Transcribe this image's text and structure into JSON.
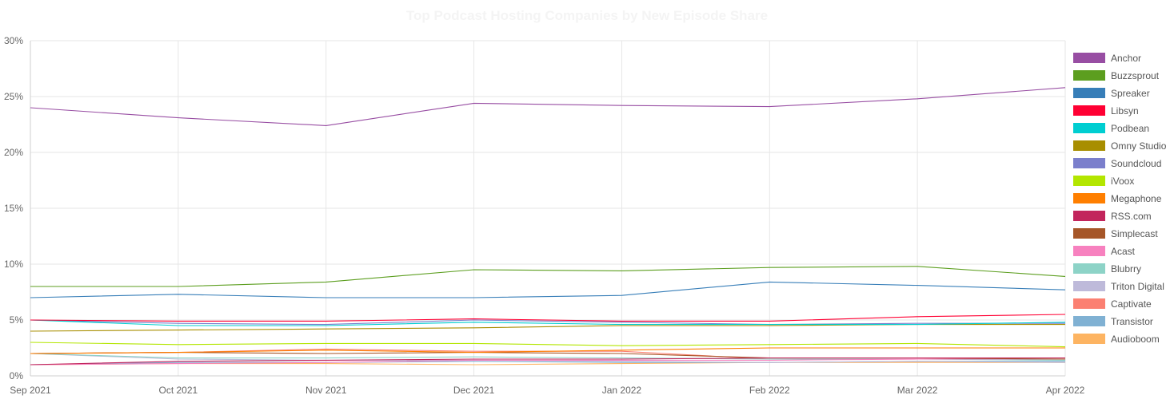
{
  "chart_data": {
    "type": "line",
    "title": "Top Podcast Hosting Companies by New Episode Share",
    "xlabel": "",
    "ylabel": "",
    "x": [
      "Sep 2021",
      "Oct 2021",
      "Nov 2021",
      "Dec 2021",
      "Jan 2022",
      "Feb 2022",
      "Mar 2022",
      "Apr 2022"
    ],
    "ylim": [
      0,
      30
    ],
    "y_ticks": [
      0,
      5,
      10,
      15,
      20,
      25,
      30
    ],
    "y_tick_labels": [
      "0%",
      "5%",
      "10%",
      "15%",
      "20%",
      "25%",
      "30%"
    ],
    "grid": true,
    "legend_position": "right",
    "series": [
      {
        "name": "Anchor",
        "color": "#984EA3",
        "values": [
          24.0,
          23.1,
          22.4,
          24.4,
          24.2,
          24.1,
          24.8,
          25.8
        ]
      },
      {
        "name": "Buzzsprout",
        "color": "#5C9E1F",
        "values": [
          8.0,
          8.0,
          8.4,
          9.5,
          9.4,
          9.7,
          9.8,
          8.9
        ]
      },
      {
        "name": "Spreaker",
        "color": "#377EB8",
        "values": [
          7.0,
          7.3,
          7.0,
          7.0,
          7.2,
          8.4,
          8.1,
          7.7
        ]
      },
      {
        "name": "Libsyn",
        "color": "#FF0033",
        "values": [
          5.0,
          4.9,
          4.9,
          5.1,
          4.9,
          4.9,
          5.3,
          5.5
        ]
      },
      {
        "name": "Podbean",
        "color": "#00CED1",
        "values": [
          5.0,
          4.5,
          4.5,
          4.8,
          4.6,
          4.6,
          4.6,
          4.8
        ]
      },
      {
        "name": "Omny Studio",
        "color": "#A88E00",
        "values": [
          4.0,
          4.1,
          4.2,
          4.3,
          4.5,
          4.5,
          4.6,
          4.6
        ]
      },
      {
        "name": "Soundcloud",
        "color": "#7B7FCC",
        "values": [
          5.0,
          4.7,
          4.6,
          5.0,
          4.8,
          4.6,
          4.7,
          4.7
        ]
      },
      {
        "name": "iVoox",
        "color": "#B3E600",
        "values": [
          3.0,
          2.8,
          2.9,
          2.9,
          2.7,
          2.8,
          2.9,
          2.6
        ]
      },
      {
        "name": "Megaphone",
        "color": "#FF7F00",
        "values": [
          2.0,
          2.1,
          2.3,
          2.1,
          2.3,
          2.5,
          2.5,
          2.5
        ]
      },
      {
        "name": "RSS.com",
        "color": "#C2255C",
        "values": [
          1.0,
          1.3,
          1.4,
          1.5,
          1.5,
          1.6,
          1.6,
          1.6
        ]
      },
      {
        "name": "Simplecast",
        "color": "#A65628",
        "values": [
          2.0,
          2.1,
          2.0,
          2.1,
          2.0,
          1.6,
          1.6,
          1.5
        ]
      },
      {
        "name": "Acast",
        "color": "#F781BF",
        "values": [
          1.0,
          1.1,
          1.2,
          1.4,
          1.4,
          1.4,
          1.5,
          1.5
        ]
      },
      {
        "name": "Blubrry",
        "color": "#8DD3C7",
        "values": [
          2.0,
          1.6,
          1.6,
          1.7,
          1.6,
          1.5,
          1.5,
          1.4
        ]
      },
      {
        "name": "Triton Digital",
        "color": "#BEBADA",
        "values": [
          2.0,
          1.5,
          1.4,
          1.4,
          1.3,
          1.2,
          1.3,
          1.2
        ]
      },
      {
        "name": "Captivate",
        "color": "#FB8072",
        "values": [
          2.0,
          2.1,
          2.4,
          2.2,
          2.2,
          1.5,
          1.5,
          1.5
        ]
      },
      {
        "name": "Transistor",
        "color": "#80B1D3",
        "values": [
          1.0,
          1.2,
          1.2,
          1.3,
          1.2,
          1.2,
          1.3,
          1.3
        ]
      },
      {
        "name": "Audioboom",
        "color": "#FDB462",
        "values": [
          1.0,
          1.1,
          1.1,
          1.0,
          1.1,
          1.2,
          1.2,
          1.2
        ]
      }
    ]
  }
}
